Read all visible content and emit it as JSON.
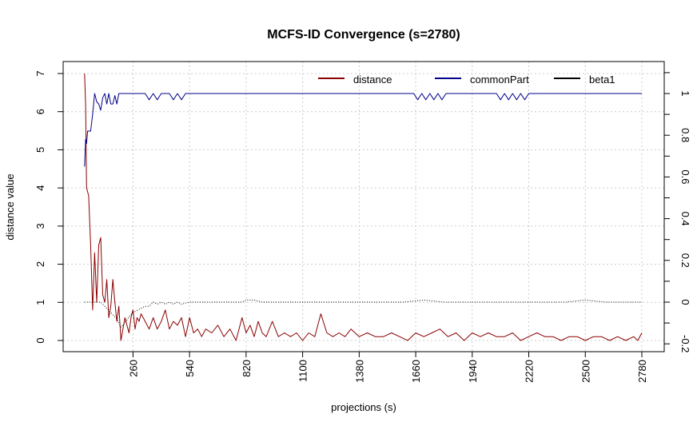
{
  "chart_data": {
    "type": "line",
    "title": "MCFS-ID Convergence (s=2780)",
    "xlabel": "projections (s)",
    "ylabel": "distance value",
    "xlim": [
      1,
      2780
    ],
    "ylim_left": [
      0,
      7
    ],
    "ylim_right": [
      -0.2,
      1
    ],
    "x_ticks": [
      260,
      540,
      820,
      1100,
      1380,
      1660,
      1940,
      2220,
      2500,
      2780
    ],
    "y_ticks_left": [
      0,
      1,
      2,
      3,
      4,
      5,
      6,
      7
    ],
    "y_ticks_right": [
      -0.2,
      0,
      0.2,
      0.4,
      0.6,
      0.8,
      1
    ],
    "y_ticks_right_minor": [
      -0.1,
      0.1,
      0.3,
      0.5,
      0.7,
      0.9,
      1.1
    ],
    "grid": true,
    "legend_position": "top",
    "series": [
      {
        "name": "distance",
        "color": "#8b0000",
        "axis": "left",
        "x": [
          20,
          25,
          30,
          40,
          50,
          60,
          70,
          80,
          90,
          100,
          110,
          120,
          130,
          140,
          150,
          160,
          170,
          180,
          190,
          200,
          210,
          220,
          230,
          240,
          250,
          260,
          270,
          280,
          290,
          300,
          320,
          340,
          360,
          380,
          400,
          420,
          440,
          460,
          480,
          500,
          520,
          540,
          560,
          580,
          600,
          620,
          650,
          680,
          710,
          740,
          770,
          800,
          820,
          840,
          860,
          880,
          900,
          920,
          950,
          980,
          1010,
          1040,
          1070,
          1100,
          1130,
          1160,
          1190,
          1220,
          1250,
          1280,
          1310,
          1340,
          1380,
          1420,
          1460,
          1500,
          1540,
          1580,
          1620,
          1660,
          1700,
          1740,
          1780,
          1820,
          1860,
          1900,
          1940,
          1980,
          2020,
          2060,
          2100,
          2140,
          2180,
          2220,
          2260,
          2300,
          2340,
          2380,
          2420,
          2460,
          2500,
          2540,
          2580,
          2620,
          2660,
          2700,
          2740,
          2760,
          2780
        ],
        "y": [
          7.0,
          6.2,
          4.0,
          3.8,
          2.5,
          0.8,
          2.3,
          1.0,
          2.5,
          2.7,
          1.2,
          1.0,
          1.6,
          0.6,
          0.9,
          1.6,
          1.0,
          0.5,
          0.9,
          0.0,
          0.3,
          0.6,
          0.4,
          0.2,
          0.6,
          0.8,
          0.3,
          0.6,
          0.5,
          0.7,
          0.5,
          0.3,
          0.6,
          0.3,
          0.5,
          0.8,
          0.3,
          0.5,
          0.4,
          0.6,
          0.1,
          0.6,
          0.2,
          0.3,
          0.1,
          0.3,
          0.2,
          0.4,
          0.1,
          0.3,
          0.0,
          0.6,
          0.2,
          0.4,
          0.1,
          0.5,
          0.2,
          0.1,
          0.5,
          0.1,
          0.2,
          0.1,
          0.2,
          0.0,
          0.2,
          0.1,
          0.7,
          0.2,
          0.1,
          0.2,
          0.1,
          0.3,
          0.1,
          0.2,
          0.1,
          0.1,
          0.2,
          0.1,
          0.0,
          0.2,
          0.1,
          0.2,
          0.3,
          0.1,
          0.2,
          0.0,
          0.2,
          0.1,
          0.2,
          0.1,
          0.1,
          0.2,
          0.0,
          0.1,
          0.2,
          0.1,
          0.1,
          0.0,
          0.1,
          0.1,
          0.0,
          0.1,
          0.1,
          0.0,
          0.1,
          0.0,
          0.1,
          0.0,
          0.2
        ]
      },
      {
        "name": "commonPart",
        "color": "#00008b",
        "axis": "right",
        "x": [
          20,
          25,
          30,
          35,
          40,
          50,
          60,
          70,
          80,
          90,
          100,
          110,
          120,
          130,
          140,
          150,
          160,
          170,
          180,
          190,
          200,
          220,
          240,
          320,
          340,
          360,
          380,
          400,
          420,
          440,
          460,
          480,
          500,
          520,
          540,
          1650,
          1670,
          1690,
          1710,
          1730,
          1750,
          1770,
          1790,
          1810,
          2060,
          2080,
          2100,
          2120,
          2140,
          2160,
          2180,
          2200,
          2220,
          2780
        ],
        "y": [
          0.65,
          0.78,
          0.76,
          0.82,
          0.82,
          0.82,
          0.9,
          1.0,
          0.96,
          0.95,
          0.92,
          0.98,
          1.0,
          0.95,
          1.0,
          0.95,
          0.95,
          0.99,
          0.95,
          1.0,
          1.0,
          1.0,
          1.0,
          1.0,
          0.97,
          1.0,
          0.97,
          1.0,
          1.0,
          1.0,
          0.97,
          1.0,
          0.97,
          1.0,
          1.0,
          1.0,
          0.97,
          1.0,
          0.97,
          1.0,
          0.97,
          1.0,
          0.97,
          1.0,
          1.0,
          0.97,
          1.0,
          0.97,
          1.0,
          0.97,
          1.0,
          0.97,
          1.0,
          1.0
        ]
      },
      {
        "name": "beta1",
        "color": "#000000",
        "axis": "right",
        "x": [
          20,
          100,
          150,
          180,
          200,
          220,
          240,
          260,
          280,
          300,
          320,
          340,
          360,
          380,
          400,
          420,
          440,
          460,
          480,
          500,
          540,
          600,
          700,
          800,
          820,
          860,
          900,
          1000,
          1100,
          1200,
          1300,
          1400,
          1500,
          1600,
          1700,
          1800,
          1900,
          2000,
          2100,
          2200,
          2300,
          2400,
          2500,
          2600,
          2700,
          2780
        ],
        "y": [
          0.0,
          0.0,
          -0.05,
          -0.08,
          -0.12,
          -0.1,
          -0.07,
          -0.05,
          -0.04,
          -0.03,
          -0.02,
          -0.02,
          0.0,
          -0.01,
          0.0,
          -0.01,
          0.0,
          -0.01,
          0.0,
          -0.01,
          0.0,
          0.0,
          0.0,
          0.0,
          0.01,
          0.01,
          0.0,
          0.0,
          0.0,
          0.0,
          0.0,
          0.0,
          0.0,
          0.0,
          0.01,
          0.0,
          0.0,
          0.0,
          0.0,
          0.0,
          0.0,
          0.0,
          0.01,
          0.0,
          0.0,
          0.0
        ]
      }
    ]
  }
}
